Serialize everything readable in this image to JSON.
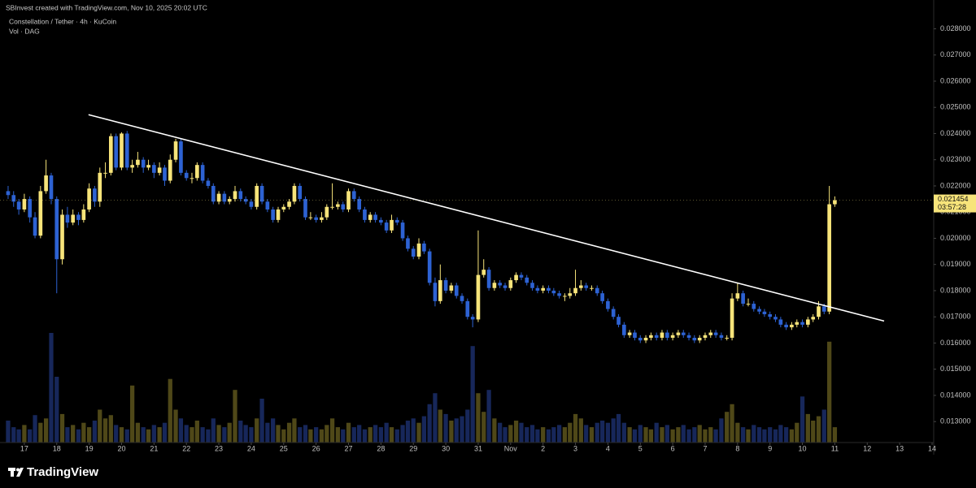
{
  "header": "SBInvest created with TradingView.com, Nov 10, 2025 20:02 UTC",
  "brand": "TradingView",
  "chart_data": {
    "type": "candlestick",
    "title": "Constellation / Tether · 4h · KuCoin",
    "subtitle": "Vol · DAG",
    "countdown": "03:57:28",
    "up_color": "#f7e47a",
    "down_color": "#2d62d3",
    "volume_up_color": "#4f4818",
    "volume_down_color": "#17275a",
    "grid": false,
    "xlim": [
      -0.75,
      28.05
    ],
    "xticks": [
      {
        "value": 0,
        "label": "17"
      },
      {
        "value": 1,
        "label": "18"
      },
      {
        "value": 2,
        "label": "19"
      },
      {
        "value": 3,
        "label": "20"
      },
      {
        "value": 4,
        "label": "21"
      },
      {
        "value": 5,
        "label": "22"
      },
      {
        "value": 6,
        "label": "23"
      },
      {
        "value": 7,
        "label": "24"
      },
      {
        "value": 8,
        "label": "25"
      },
      {
        "value": 9,
        "label": "26"
      },
      {
        "value": 10,
        "label": "27"
      },
      {
        "value": 11,
        "label": "28"
      },
      {
        "value": 12,
        "label": "29"
      },
      {
        "value": 13,
        "label": "30"
      },
      {
        "value": 14,
        "label": "31"
      },
      {
        "value": 15,
        "label": "Nov"
      },
      {
        "value": 16,
        "label": "2"
      },
      {
        "value": 17,
        "label": "3"
      },
      {
        "value": 18,
        "label": "4"
      },
      {
        "value": 19,
        "label": "5"
      },
      {
        "value": 20,
        "label": "6"
      },
      {
        "value": 21,
        "label": "7"
      },
      {
        "value": 22,
        "label": "8"
      },
      {
        "value": 23,
        "label": "9"
      },
      {
        "value": 24,
        "label": "10"
      },
      {
        "value": 25,
        "label": "11"
      },
      {
        "value": 26,
        "label": "12"
      },
      {
        "value": 27,
        "label": "13"
      },
      {
        "value": 28,
        "label": "14"
      }
    ],
    "ylim": [
      0.0122,
      0.0291
    ],
    "yticks": [
      {
        "value": 0.013,
        "label": "0.013000"
      },
      {
        "value": 0.014,
        "label": "0.014000"
      },
      {
        "value": 0.015,
        "label": "0.015000"
      },
      {
        "value": 0.016,
        "label": "0.016000"
      },
      {
        "value": 0.017,
        "label": "0.017000"
      },
      {
        "value": 0.018,
        "label": "0.018000"
      },
      {
        "value": 0.019,
        "label": "0.019000"
      },
      {
        "value": 0.02,
        "label": "0.020000"
      },
      {
        "value": 0.021,
        "label": "0.021000"
      },
      {
        "value": 0.022,
        "label": "0.022000"
      },
      {
        "value": 0.023,
        "label": "0.023000"
      },
      {
        "value": 0.024,
        "label": "0.024000"
      },
      {
        "value": 0.025,
        "label": "0.025000"
      },
      {
        "value": 0.026,
        "label": "0.026000"
      },
      {
        "value": 0.027,
        "label": "0.027000"
      },
      {
        "value": 0.028,
        "label": "0.028000"
      }
    ],
    "trendline": {
      "x": [
        1.98,
        26.52
      ],
      "y": [
        0.02472,
        0.01684
      ],
      "color": "#ffffff"
    },
    "x": [
      -0.5,
      -0.33,
      -0.17,
      0,
      0.17,
      0.33,
      0.5,
      0.67,
      0.83,
      1,
      1.17,
      1.33,
      1.5,
      1.67,
      1.83,
      2,
      2.17,
      2.33,
      2.5,
      2.67,
      2.83,
      3,
      3.17,
      3.33,
      3.5,
      3.67,
      3.83,
      4,
      4.17,
      4.33,
      4.5,
      4.67,
      4.83,
      5,
      5.17,
      5.33,
      5.5,
      5.67,
      5.83,
      6,
      6.17,
      6.33,
      6.5,
      6.67,
      6.83,
      7,
      7.17,
      7.33,
      7.5,
      7.67,
      7.83,
      8,
      8.17,
      8.33,
      8.5,
      8.67,
      8.83,
      9,
      9.17,
      9.33,
      9.5,
      9.67,
      9.83,
      10,
      10.17,
      10.33,
      10.5,
      10.67,
      10.83,
      11,
      11.17,
      11.33,
      11.5,
      11.67,
      11.83,
      12,
      12.17,
      12.33,
      12.5,
      12.67,
      12.83,
      13,
      13.17,
      13.33,
      13.5,
      13.67,
      13.83,
      14,
      14.17,
      14.33,
      14.5,
      14.67,
      14.83,
      15,
      15.17,
      15.33,
      15.5,
      15.67,
      15.83,
      16,
      16.17,
      16.33,
      16.5,
      16.67,
      16.83,
      17,
      17.17,
      17.33,
      17.5,
      17.67,
      17.83,
      18,
      18.17,
      18.33,
      18.5,
      18.67,
      18.83,
      19,
      19.17,
      19.33,
      19.5,
      19.67,
      19.83,
      20,
      20.17,
      20.33,
      20.5,
      20.67,
      20.83,
      21,
      21.17,
      21.33,
      21.5,
      21.67,
      21.83,
      22,
      22.17,
      22.33,
      22.5,
      22.67,
      22.83,
      23,
      23.17,
      23.33,
      23.5,
      23.67,
      23.83,
      24,
      24.17,
      24.33,
      24.5,
      24.67,
      24.83,
      25
    ],
    "ohlc": [
      [
        0.0218,
        0.022,
        0.0215,
        0.02165
      ],
      [
        0.02165,
        0.0218,
        0.0212,
        0.0214
      ],
      [
        0.0214,
        0.0215,
        0.0209,
        0.0211
      ],
      [
        0.0211,
        0.0217,
        0.021,
        0.0215
      ],
      [
        0.0215,
        0.0216,
        0.0206,
        0.0208
      ],
      [
        0.0208,
        0.021,
        0.02,
        0.0201
      ],
      [
        0.0201,
        0.022,
        0.02,
        0.0218
      ],
      [
        0.0218,
        0.023,
        0.0217,
        0.0224
      ],
      [
        0.0224,
        0.0225,
        0.0213,
        0.0215
      ],
      [
        0.0215,
        0.0216,
        0.0179,
        0.0192
      ],
      [
        0.0192,
        0.0211,
        0.019,
        0.0209
      ],
      [
        0.0209,
        0.0212,
        0.0204,
        0.0206
      ],
      [
        0.0206,
        0.0211,
        0.0205,
        0.0209
      ],
      [
        0.0209,
        0.021,
        0.0205,
        0.0207
      ],
      [
        0.0207,
        0.0213,
        0.0206,
        0.0211
      ],
      [
        0.0211,
        0.0221,
        0.021,
        0.0219
      ],
      [
        0.0219,
        0.022,
        0.0212,
        0.0214
      ],
      [
        0.0214,
        0.0227,
        0.0212,
        0.0225
      ],
      [
        0.0225,
        0.0229,
        0.0223,
        0.0225
      ],
      [
        0.0225,
        0.024,
        0.0224,
        0.0239
      ],
      [
        0.0239,
        0.024,
        0.0226,
        0.0227
      ],
      [
        0.0227,
        0.02405,
        0.0226,
        0.024
      ],
      [
        0.024,
        0.0241,
        0.0226,
        0.0227
      ],
      [
        0.0227,
        0.023,
        0.0225,
        0.0228
      ],
      [
        0.0228,
        0.0233,
        0.0227,
        0.023
      ],
      [
        0.023,
        0.0231,
        0.0225,
        0.0227
      ],
      [
        0.0227,
        0.023,
        0.0226,
        0.0228
      ],
      [
        0.0228,
        0.0229,
        0.0223,
        0.0225
      ],
      [
        0.0225,
        0.0229,
        0.0224,
        0.0227
      ],
      [
        0.0227,
        0.0228,
        0.022,
        0.0222
      ],
      [
        0.0222,
        0.0232,
        0.0221,
        0.023
      ],
      [
        0.023,
        0.0238,
        0.0229,
        0.0237
      ],
      [
        0.0237,
        0.0238,
        0.0224,
        0.0225
      ],
      [
        0.0225,
        0.0226,
        0.0222,
        0.0223
      ],
      [
        0.0223,
        0.0225,
        0.0221,
        0.0223
      ],
      [
        0.0223,
        0.0229,
        0.0222,
        0.0228
      ],
      [
        0.0228,
        0.0229,
        0.0221,
        0.0222
      ],
      [
        0.0222,
        0.0223,
        0.0219,
        0.022
      ],
      [
        0.022,
        0.0221,
        0.0213,
        0.0214
      ],
      [
        0.0214,
        0.0218,
        0.0213,
        0.0217
      ],
      [
        0.0217,
        0.0218,
        0.0213,
        0.0214
      ],
      [
        0.0214,
        0.0216,
        0.0213,
        0.0215
      ],
      [
        0.0215,
        0.022,
        0.0214,
        0.0218
      ],
      [
        0.0218,
        0.0219,
        0.0214,
        0.0215
      ],
      [
        0.0215,
        0.0216,
        0.0213,
        0.0214
      ],
      [
        0.0214,
        0.0215,
        0.0211,
        0.0212
      ],
      [
        0.0212,
        0.0221,
        0.0211,
        0.022
      ],
      [
        0.022,
        0.0221,
        0.0213,
        0.0214
      ],
      [
        0.0214,
        0.0215,
        0.021,
        0.0211
      ],
      [
        0.0211,
        0.0212,
        0.0206,
        0.0207
      ],
      [
        0.0207,
        0.0212,
        0.0206,
        0.0211
      ],
      [
        0.0211,
        0.0213,
        0.021,
        0.0212
      ],
      [
        0.0212,
        0.0215,
        0.0211,
        0.0214
      ],
      [
        0.0214,
        0.0221,
        0.0213,
        0.022
      ],
      [
        0.022,
        0.0221,
        0.0214,
        0.0215
      ],
      [
        0.0215,
        0.0216,
        0.0207,
        0.0208
      ],
      [
        0.0208,
        0.021,
        0.0207,
        0.0208
      ],
      [
        0.0208,
        0.0209,
        0.0206,
        0.0207
      ],
      [
        0.0207,
        0.021,
        0.0206,
        0.0208
      ],
      [
        0.0208,
        0.0213,
        0.0207,
        0.0212
      ],
      [
        0.0212,
        0.0221,
        0.0211,
        0.0212
      ],
      [
        0.0212,
        0.0214,
        0.0211,
        0.0213
      ],
      [
        0.0213,
        0.0214,
        0.021,
        0.0211
      ],
      [
        0.0211,
        0.0219,
        0.021,
        0.0218
      ],
      [
        0.0218,
        0.0219,
        0.0214,
        0.0215
      ],
      [
        0.0215,
        0.0216,
        0.021,
        0.0211
      ],
      [
        0.0211,
        0.0212,
        0.0206,
        0.0207
      ],
      [
        0.0207,
        0.021,
        0.0206,
        0.0209
      ],
      [
        0.0209,
        0.021,
        0.0206,
        0.0207
      ],
      [
        0.0207,
        0.0208,
        0.0205,
        0.0206
      ],
      [
        0.0206,
        0.0207,
        0.0202,
        0.0203
      ],
      [
        0.0203,
        0.0209,
        0.0202,
        0.0207
      ],
      [
        0.0207,
        0.0208,
        0.0205,
        0.0206
      ],
      [
        0.0206,
        0.0207,
        0.0199,
        0.02
      ],
      [
        0.02,
        0.0201,
        0.0195,
        0.0196
      ],
      [
        0.0196,
        0.0197,
        0.0192,
        0.0193
      ],
      [
        0.0193,
        0.02,
        0.0192,
        0.0198
      ],
      [
        0.0198,
        0.0199,
        0.0194,
        0.0195
      ],
      [
        0.0195,
        0.0196,
        0.0182,
        0.0183
      ],
      [
        0.0183,
        0.0185,
        0.0174,
        0.0176
      ],
      [
        0.0176,
        0.019,
        0.0175,
        0.0184
      ],
      [
        0.0184,
        0.0185,
        0.0179,
        0.018
      ],
      [
        0.018,
        0.0183,
        0.0179,
        0.0182
      ],
      [
        0.0182,
        0.0183,
        0.0177,
        0.0178
      ],
      [
        0.0178,
        0.0179,
        0.0175,
        0.0176
      ],
      [
        0.0176,
        0.0177,
        0.0169,
        0.017
      ],
      [
        0.017,
        0.0171,
        0.0166,
        0.0169
      ],
      [
        0.0169,
        0.0203,
        0.0168,
        0.0186
      ],
      [
        0.0186,
        0.0192,
        0.0185,
        0.0188
      ],
      [
        0.0188,
        0.0189,
        0.018,
        0.0181
      ],
      [
        0.0181,
        0.0184,
        0.018,
        0.0183
      ],
      [
        0.0183,
        0.0184,
        0.0181,
        0.0182
      ],
      [
        0.0182,
        0.0183,
        0.018,
        0.0181
      ],
      [
        0.0181,
        0.0185,
        0.018,
        0.0184
      ],
      [
        0.0184,
        0.0187,
        0.0183,
        0.0186
      ],
      [
        0.0186,
        0.0187,
        0.0184,
        0.0185
      ],
      [
        0.0185,
        0.0186,
        0.0182,
        0.0183
      ],
      [
        0.0183,
        0.0184,
        0.018,
        0.0181
      ],
      [
        0.0181,
        0.0182,
        0.0179,
        0.018
      ],
      [
        0.018,
        0.0182,
        0.0179,
        0.0181
      ],
      [
        0.0181,
        0.0182,
        0.0179,
        0.018
      ],
      [
        0.018,
        0.0181,
        0.0178,
        0.0179
      ],
      [
        0.0179,
        0.018,
        0.0177,
        0.0178
      ],
      [
        0.0178,
        0.0179,
        0.0176,
        0.0178
      ],
      [
        0.0178,
        0.0181,
        0.0177,
        0.0179
      ],
      [
        0.0179,
        0.0188,
        0.0178,
        0.0181
      ],
      [
        0.0181,
        0.0184,
        0.018,
        0.0182
      ],
      [
        0.0182,
        0.0183,
        0.018,
        0.0181
      ],
      [
        0.0181,
        0.0182,
        0.018,
        0.0181
      ],
      [
        0.0181,
        0.0182,
        0.0178,
        0.0179
      ],
      [
        0.0179,
        0.018,
        0.0175,
        0.0176
      ],
      [
        0.0176,
        0.0177,
        0.0172,
        0.0173
      ],
      [
        0.0173,
        0.0174,
        0.0169,
        0.017
      ],
      [
        0.017,
        0.0171,
        0.0166,
        0.0167
      ],
      [
        0.0167,
        0.0168,
        0.0162,
        0.0163
      ],
      [
        0.0163,
        0.0165,
        0.0162,
        0.0164
      ],
      [
        0.0164,
        0.0165,
        0.0161,
        0.0162
      ],
      [
        0.0162,
        0.0163,
        0.016,
        0.0161
      ],
      [
        0.0161,
        0.0163,
        0.016,
        0.0162
      ],
      [
        0.0162,
        0.0164,
        0.0161,
        0.0163
      ],
      [
        0.0163,
        0.0164,
        0.0161,
        0.0162
      ],
      [
        0.0162,
        0.0165,
        0.0161,
        0.0164
      ],
      [
        0.0164,
        0.0165,
        0.0161,
        0.0162
      ],
      [
        0.0162,
        0.0164,
        0.0161,
        0.0163
      ],
      [
        0.0163,
        0.0165,
        0.0162,
        0.0164
      ],
      [
        0.0164,
        0.0165,
        0.0162,
        0.0163
      ],
      [
        0.0163,
        0.0164,
        0.0161,
        0.0162
      ],
      [
        0.0162,
        0.0163,
        0.016,
        0.0161
      ],
      [
        0.0161,
        0.0163,
        0.016,
        0.0162
      ],
      [
        0.0162,
        0.0164,
        0.0161,
        0.0163
      ],
      [
        0.0163,
        0.0165,
        0.0162,
        0.0164
      ],
      [
        0.0164,
        0.0165,
        0.0162,
        0.0163
      ],
      [
        0.0163,
        0.0164,
        0.0161,
        0.0162
      ],
      [
        0.0162,
        0.0163,
        0.0161,
        0.0162
      ],
      [
        0.0162,
        0.0179,
        0.0161,
        0.0177
      ],
      [
        0.0177,
        0.0183,
        0.0176,
        0.0179
      ],
      [
        0.0179,
        0.018,
        0.0174,
        0.0175
      ],
      [
        0.0175,
        0.0177,
        0.0174,
        0.0175
      ],
      [
        0.0175,
        0.0176,
        0.0172,
        0.0173
      ],
      [
        0.0173,
        0.0174,
        0.0171,
        0.0172
      ],
      [
        0.0172,
        0.0173,
        0.017,
        0.0171
      ],
      [
        0.0171,
        0.0172,
        0.0169,
        0.017
      ],
      [
        0.017,
        0.0171,
        0.0168,
        0.0169
      ],
      [
        0.0169,
        0.017,
        0.0166,
        0.0167
      ],
      [
        0.0167,
        0.0168,
        0.0165,
        0.0166
      ],
      [
        0.0166,
        0.0168,
        0.0165,
        0.0167
      ],
      [
        0.0167,
        0.0169,
        0.0166,
        0.0168
      ],
      [
        0.0168,
        0.0169,
        0.0166,
        0.0167
      ],
      [
        0.0167,
        0.017,
        0.0166,
        0.0169
      ],
      [
        0.0169,
        0.0171,
        0.0168,
        0.017
      ],
      [
        0.017,
        0.0176,
        0.0169,
        0.0174
      ],
      [
        0.0174,
        0.0175,
        0.0171,
        0.0172
      ],
      [
        0.0172,
        0.022,
        0.0171,
        0.0213
      ],
      [
        0.0213,
        0.0216,
        0.0212,
        0.021454
      ]
    ],
    "volume": [
      20,
      14,
      12,
      16,
      12,
      25,
      18,
      22,
      100,
      60,
      26,
      14,
      16,
      12,
      18,
      14,
      20,
      30,
      22,
      25,
      16,
      14,
      12,
      52,
      18,
      14,
      12,
      16,
      14,
      18,
      58,
      30,
      22,
      16,
      14,
      20,
      14,
      12,
      22,
      16,
      14,
      18,
      48,
      20,
      16,
      14,
      22,
      40,
      18,
      22,
      16,
      12,
      18,
      22,
      14,
      16,
      12,
      14,
      12,
      16,
      22,
      14,
      12,
      18,
      14,
      16,
      12,
      14,
      16,
      14,
      18,
      14,
      12,
      16,
      20,
      22,
      18,
      24,
      35,
      45,
      30,
      26,
      20,
      22,
      24,
      30,
      88,
      45,
      28,
      48,
      22,
      18,
      14,
      16,
      20,
      18,
      14,
      16,
      12,
      14,
      12,
      14,
      16,
      14,
      18,
      26,
      22,
      16,
      14,
      18,
      20,
      18,
      22,
      26,
      18,
      14,
      12,
      16,
      14,
      12,
      18,
      14,
      16,
      12,
      14,
      16,
      12,
      14,
      16,
      12,
      14,
      12,
      22,
      28,
      35,
      18,
      14,
      12,
      16,
      14,
      12,
      14,
      12,
      16,
      14,
      12,
      18,
      42,
      26,
      20,
      24,
      30,
      92,
      14
    ]
  }
}
